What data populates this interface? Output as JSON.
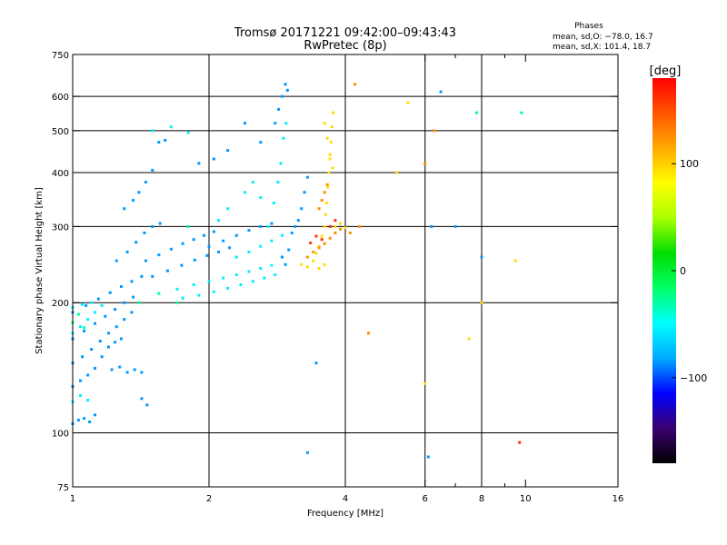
{
  "chart_data": {
    "type": "scatter",
    "title": "Tromsø 20171221 09:42:00–09:43:43",
    "subtitle": "RwPretec (8p)",
    "legend": {
      "heading": "Phases",
      "line_o": "mean, sd,O: −78.0, 16.7",
      "line_x": "mean, sd,X: 101.4, 18.7",
      "placement": "top-right"
    },
    "xlabel": "Frequency [MHz]",
    "ylabel": "Stationary phase Virtual Height [km]",
    "x_scale": "log",
    "y_scale": "log",
    "xlim": [
      1,
      16
    ],
    "ylim": [
      75,
      750
    ],
    "x_ticks": [
      {
        "value": 1,
        "label": "1"
      },
      {
        "value": 2,
        "label": "2"
      },
      {
        "value": 4,
        "label": "4"
      },
      {
        "value": 6,
        "label": "6"
      },
      {
        "value": 8,
        "label": "8"
      },
      {
        "value": 10,
        "label": "10"
      },
      {
        "value": 16,
        "label": "16"
      }
    ],
    "x_grid": [
      2,
      4,
      6,
      8
    ],
    "x_minor": [
      7,
      9
    ],
    "y_ticks": [
      {
        "value": 75,
        "label": "75"
      },
      {
        "value": 100,
        "label": "100"
      },
      {
        "value": 200,
        "label": "200"
      },
      {
        "value": 300,
        "label": "300"
      },
      {
        "value": 400,
        "label": "400"
      },
      {
        "value": 500,
        "label": "500"
      },
      {
        "value": 600,
        "label": "600"
      },
      {
        "value": 750,
        "label": "750"
      }
    ],
    "y_grid": [
      100,
      200,
      300,
      400,
      500,
      600
    ],
    "grid": true,
    "colorbar": {
      "unit_label": "[deg]",
      "range": [
        -180,
        180
      ],
      "ticks": [
        {
          "value": 100,
          "label": "100"
        },
        {
          "value": 0,
          "label": "0"
        },
        {
          "value": -100,
          "label": "−100"
        }
      ],
      "colors": [
        "#000000",
        "#3a0070",
        "#0000ff",
        "#00aaff",
        "#00ffff",
        "#00ff66",
        "#00dd00",
        "#aaff00",
        "#ffff00",
        "#ffaa00",
        "#ff5500",
        "#ff0000"
      ]
    },
    "series": [
      {
        "phase": -85,
        "points": [
          [
            1.0,
            105
          ],
          [
            1.03,
            107
          ],
          [
            1.06,
            108
          ],
          [
            1.09,
            106
          ],
          [
            1.12,
            110
          ],
          [
            1.0,
            128
          ],
          [
            1.04,
            132
          ],
          [
            1.08,
            136
          ],
          [
            1.12,
            141
          ],
          [
            1.16,
            150
          ],
          [
            1.2,
            158
          ],
          [
            1.24,
            162
          ],
          [
            1.28,
            165
          ],
          [
            1.0,
            145
          ],
          [
            1.05,
            150
          ],
          [
            1.1,
            156
          ],
          [
            1.15,
            163
          ],
          [
            1.2,
            170
          ],
          [
            1.25,
            176
          ],
          [
            1.3,
            183
          ],
          [
            1.35,
            190
          ],
          [
            1.0,
            165
          ],
          [
            1.06,
            172
          ],
          [
            1.12,
            179
          ],
          [
            1.18,
            186
          ],
          [
            1.24,
            193
          ],
          [
            1.3,
            200
          ],
          [
            1.36,
            206
          ],
          [
            1.0,
            190
          ],
          [
            1.07,
            197
          ],
          [
            1.14,
            204
          ],
          [
            1.21,
            211
          ],
          [
            1.28,
            218
          ],
          [
            1.35,
            224
          ],
          [
            1.42,
            230
          ],
          [
            1.22,
            140
          ],
          [
            1.27,
            142
          ],
          [
            1.32,
            138
          ],
          [
            1.37,
            140
          ],
          [
            1.42,
            138
          ],
          [
            1.25,
            250
          ],
          [
            1.32,
            262
          ],
          [
            1.38,
            276
          ],
          [
            1.44,
            290
          ],
          [
            1.5,
            300
          ],
          [
            1.56,
            305
          ],
          [
            1.3,
            330
          ],
          [
            1.36,
            345
          ],
          [
            1.4,
            360
          ],
          [
            1.45,
            380
          ],
          [
            1.5,
            405
          ],
          [
            1.55,
            470
          ],
          [
            1.6,
            475
          ],
          [
            1.45,
            250
          ],
          [
            1.55,
            258
          ],
          [
            1.65,
            266
          ],
          [
            1.75,
            274
          ],
          [
            1.85,
            280
          ],
          [
            1.95,
            286
          ],
          [
            2.05,
            292
          ],
          [
            1.5,
            230
          ],
          [
            1.62,
            237
          ],
          [
            1.74,
            244
          ],
          [
            1.86,
            251
          ],
          [
            1.98,
            257
          ],
          [
            2.1,
            262
          ],
          [
            2.22,
            268
          ],
          [
            2.0,
            270
          ],
          [
            2.15,
            278
          ],
          [
            2.3,
            286
          ],
          [
            2.45,
            294
          ],
          [
            2.6,
            300
          ],
          [
            2.75,
            305
          ],
          [
            1.9,
            420
          ],
          [
            2.05,
            430
          ],
          [
            2.2,
            450
          ],
          [
            2.4,
            520
          ],
          [
            2.6,
            470
          ],
          [
            2.8,
            520
          ],
          [
            2.85,
            560
          ],
          [
            2.9,
            600
          ],
          [
            2.95,
            640
          ],
          [
            2.98,
            620
          ],
          [
            3.05,
            290
          ],
          [
            3.1,
            300
          ],
          [
            3.15,
            310
          ],
          [
            3.2,
            330
          ],
          [
            3.25,
            360
          ],
          [
            3.3,
            390
          ],
          [
            1.42,
            120
          ],
          [
            1.46,
            116
          ],
          [
            2.9,
            255
          ],
          [
            3.0,
            265
          ],
          [
            2.95,
            245
          ],
          [
            6.5,
            615
          ],
          [
            7.0,
            300
          ],
          [
            8.0,
            255
          ],
          [
            3.45,
            145
          ],
          [
            3.3,
            90
          ],
          [
            6.1,
            88
          ],
          [
            6.2,
            300
          ]
        ]
      },
      {
        "phase": -55,
        "points": [
          [
            1.0,
            170
          ],
          [
            1.04,
            176
          ],
          [
            1.08,
            183
          ],
          [
            1.12,
            190
          ],
          [
            1.16,
            197
          ],
          [
            1.0,
            195
          ],
          [
            1.05,
            198
          ],
          [
            1.1,
            200
          ],
          [
            1.0,
            118
          ],
          [
            1.04,
            122
          ],
          [
            1.08,
            119
          ],
          [
            1.7,
            215
          ],
          [
            1.85,
            220
          ],
          [
            2.0,
            224
          ],
          [
            2.15,
            228
          ],
          [
            2.3,
            232
          ],
          [
            2.45,
            236
          ],
          [
            2.6,
            240
          ],
          [
            2.75,
            244
          ],
          [
            1.75,
            205
          ],
          [
            1.9,
            208
          ],
          [
            2.05,
            212
          ],
          [
            2.2,
            216
          ],
          [
            2.35,
            220
          ],
          [
            2.5,
            224
          ],
          [
            2.65,
            228
          ],
          [
            2.8,
            232
          ],
          [
            2.3,
            255
          ],
          [
            2.45,
            262
          ],
          [
            2.6,
            270
          ],
          [
            2.75,
            278
          ],
          [
            2.9,
            286
          ],
          [
            2.7,
            300
          ],
          [
            2.78,
            340
          ],
          [
            2.84,
            380
          ],
          [
            2.88,
            420
          ],
          [
            2.92,
            480
          ],
          [
            2.96,
            520
          ],
          [
            1.5,
            500
          ],
          [
            1.65,
            510
          ],
          [
            1.8,
            495
          ],
          [
            2.4,
            360
          ],
          [
            2.5,
            380
          ],
          [
            2.6,
            350
          ],
          [
            2.2,
            330
          ],
          [
            2.1,
            310
          ]
        ]
      },
      {
        "phase": -25,
        "points": [
          [
            1.0,
            180
          ],
          [
            1.03,
            188
          ],
          [
            1.06,
            175
          ],
          [
            1.4,
            200
          ],
          [
            1.55,
            210
          ],
          [
            1.7,
            200
          ],
          [
            7.8,
            550
          ],
          [
            9.8,
            550
          ],
          [
            1.8,
            300
          ]
        ]
      },
      {
        "phase": 95,
        "points": [
          [
            3.4,
            250
          ],
          [
            3.45,
            260
          ],
          [
            3.5,
            270
          ],
          [
            3.55,
            285
          ],
          [
            3.6,
            300
          ],
          [
            3.62,
            320
          ],
          [
            3.64,
            340
          ],
          [
            3.66,
            370
          ],
          [
            3.68,
            400
          ],
          [
            3.7,
            430
          ],
          [
            3.72,
            470
          ],
          [
            3.74,
            510
          ],
          [
            3.76,
            550
          ],
          [
            3.6,
            520
          ],
          [
            3.65,
            480
          ],
          [
            3.7,
            440
          ],
          [
            3.75,
            410
          ],
          [
            3.8,
            300
          ],
          [
            3.9,
            305
          ],
          [
            4.0,
            298
          ],
          [
            3.5,
            240
          ],
          [
            3.6,
            245
          ],
          [
            3.3,
            242
          ],
          [
            3.2,
            245
          ],
          [
            5.2,
            400
          ],
          [
            5.5,
            580
          ],
          [
            6.0,
            130
          ],
          [
            7.5,
            165
          ],
          [
            8.0,
            200
          ],
          [
            9.5,
            250
          ]
        ]
      },
      {
        "phase": 125,
        "points": [
          [
            3.3,
            255
          ],
          [
            3.4,
            262
          ],
          [
            3.5,
            268
          ],
          [
            3.6,
            274
          ],
          [
            3.7,
            282
          ],
          [
            3.8,
            290
          ],
          [
            3.9,
            296
          ],
          [
            3.5,
            330
          ],
          [
            3.55,
            345
          ],
          [
            3.6,
            360
          ],
          [
            3.65,
            375
          ],
          [
            4.1,
            290
          ],
          [
            4.3,
            300
          ],
          [
            4.5,
            170
          ],
          [
            4.2,
            640
          ],
          [
            6.0,
            420
          ],
          [
            6.3,
            500
          ]
        ]
      },
      {
        "phase": 160,
        "points": [
          [
            3.35,
            275
          ],
          [
            3.45,
            285
          ],
          [
            3.55,
            280
          ],
          [
            3.7,
            300
          ],
          [
            3.8,
            310
          ],
          [
            9.7,
            95
          ]
        ]
      }
    ]
  }
}
